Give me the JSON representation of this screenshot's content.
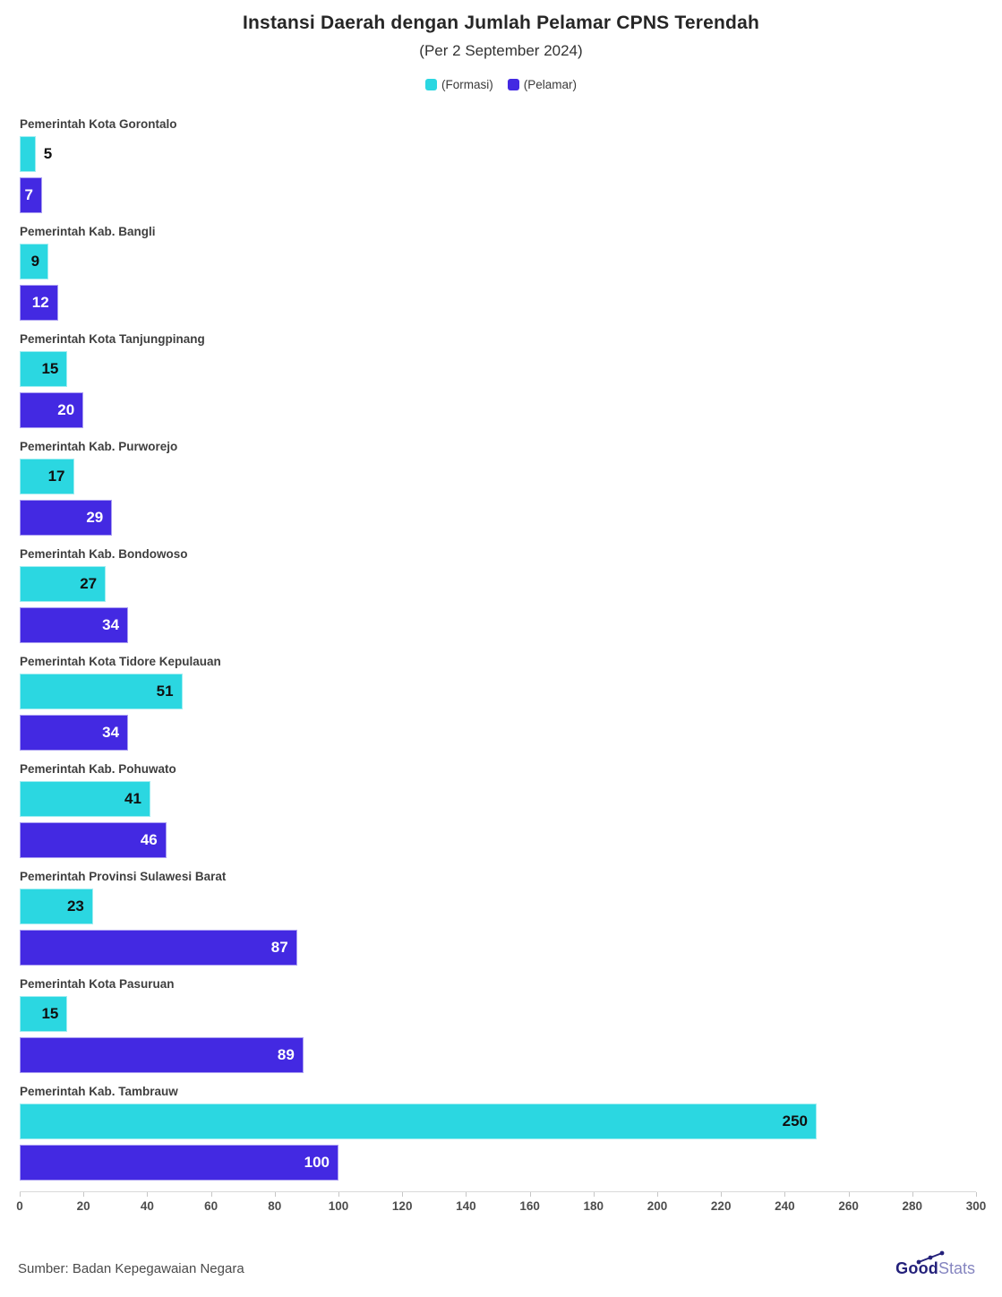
{
  "title": "Instansi Daerah dengan Jumlah Pelamar CPNS Terendah",
  "subtitle": "(Per 2 September 2024)",
  "legend": [
    {
      "label": "(Formasi)",
      "color": "#2bd7e1"
    },
    {
      "label": "(Pelamar)",
      "color": "#4329e2"
    }
  ],
  "chart_data": {
    "type": "bar",
    "orientation": "horizontal",
    "title": "Instansi Daerah dengan Jumlah Pelamar CPNS Terendah",
    "subtitle": "(Per 2 September 2024)",
    "categories": [
      "Pemerintah Kota Gorontalo",
      "Pemerintah Kab. Bangli",
      "Pemerintah Kota Tanjungpinang",
      "Pemerintah Kab. Purworejo",
      "Pemerintah Kab. Bondowoso",
      "Pemerintah Kota Tidore Kepulauan",
      "Pemerintah Kab. Pohuwato",
      "Pemerintah Provinsi Sulawesi Barat",
      "Pemerintah Kota Pasuruan",
      "Pemerintah Kab. Tambrauw"
    ],
    "series": [
      {
        "name": "(Formasi)",
        "color": "#2bd7e1",
        "label_color": "#101010",
        "values": [
          5,
          9,
          15,
          17,
          27,
          51,
          41,
          23,
          15,
          250
        ]
      },
      {
        "name": "(Pelamar)",
        "color": "#4329e2",
        "label_color": "#ffffff",
        "values": [
          7,
          12,
          20,
          29,
          34,
          34,
          46,
          87,
          89,
          100
        ]
      }
    ],
    "xlim": [
      0,
      300
    ],
    "xticks": [
      0,
      20,
      40,
      60,
      80,
      100,
      120,
      140,
      160,
      180,
      200,
      220,
      240,
      260,
      280,
      300
    ],
    "grid": false,
    "legend_position": "top",
    "value_labels": true
  },
  "footer": {
    "source": "Sumber: Badan Kepegawaian Negara",
    "logo_bold": "Good",
    "logo_light": "Stats"
  }
}
